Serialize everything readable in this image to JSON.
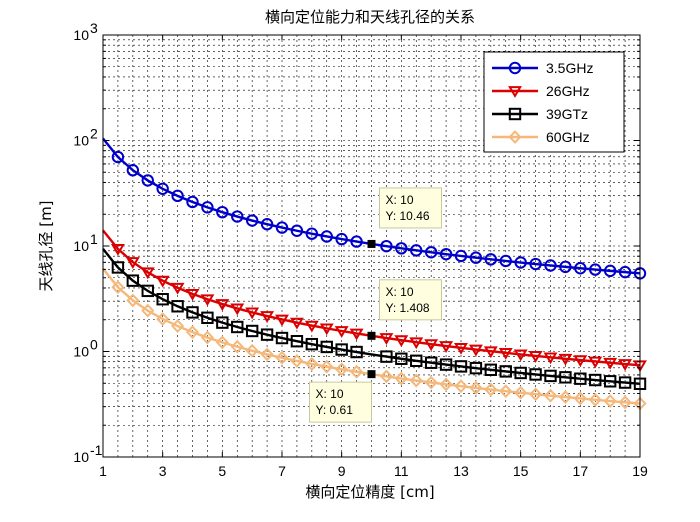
{
  "chart_data": {
    "type": "line",
    "title": "横向定位能力和天线孔径的关系",
    "xlabel": "横向定位精度 [cm]",
    "ylabel": "天线孔径 [m]",
    "xlim": [
      1,
      19
    ],
    "ylim": [
      0.1,
      1000
    ],
    "yscale": "log",
    "xticks": [
      1,
      3,
      5,
      7,
      9,
      11,
      13,
      15,
      17,
      19
    ],
    "yticks": [
      {
        "value": 0.1,
        "base": "10",
        "exp": "-1"
      },
      {
        "value": 1,
        "base": "10",
        "exp": "0"
      },
      {
        "value": 10,
        "base": "10",
        "exp": "1"
      },
      {
        "value": 100,
        "base": "10",
        "exp": "2"
      },
      {
        "value": 1000,
        "base": "10",
        "exp": "3"
      }
    ],
    "grid": true,
    "legend_position": "top-right",
    "x_start": 1,
    "x_end": 19,
    "x_step": 0.5,
    "series": [
      {
        "name": "3.5GHz",
        "color": "#0000cc",
        "marker": "circle",
        "coefficient": 104.6,
        "fill": "none"
      },
      {
        "name": "26GHz",
        "color": "#dd0000",
        "marker": "triangle-down",
        "coefficient": 14.08,
        "fill": "none"
      },
      {
        "name": "39GTz",
        "color": "#000000",
        "marker": "square",
        "coefficient": 9.39,
        "fill": "none"
      },
      {
        "name": "60GHz",
        "color": "#f5b87a",
        "marker": "diamond",
        "coefficient": 6.1,
        "fill": "none"
      }
    ],
    "annotations": [
      {
        "x_text": "X: 10",
        "y_text": "Y: 10.46",
        "x": 10,
        "y": 10.46
      },
      {
        "x_text": "X: 10",
        "y_text": "Y: 1.408",
        "x": 10,
        "y": 1.408
      },
      {
        "x_text": "X: 10",
        "y_text": "Y: 0.61",
        "x": 10,
        "y": 0.61
      }
    ]
  }
}
